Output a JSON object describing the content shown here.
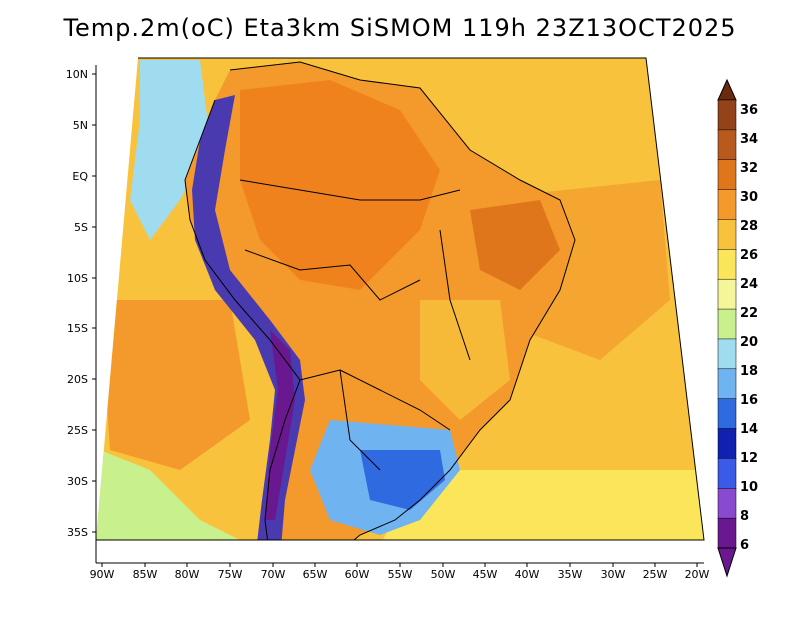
{
  "title": "Temp.2m(oC) Eta3km SiSMOM 119h 23Z13OCT2025",
  "lat_labels": [
    "10N",
    "5N",
    "EQ",
    "5S",
    "10S",
    "15S",
    "20S",
    "25S",
    "30S",
    "35S"
  ],
  "lon_labels": [
    "90W",
    "85W",
    "80W",
    "75W",
    "70W",
    "65W",
    "60W",
    "55W",
    "50W",
    "45W",
    "40W",
    "35W",
    "30W",
    "25W",
    "20W"
  ],
  "colorbar": {
    "labels": [
      "36",
      "34",
      "32",
      "30",
      "28",
      "26",
      "24",
      "22",
      "20",
      "18",
      "16",
      "14",
      "12",
      "10",
      "8",
      "6"
    ],
    "colors": [
      "#6b2a0e",
      "#93421a",
      "#b85a1e",
      "#e0761c",
      "#f49a2c",
      "#f8c23c",
      "#fbe55a",
      "#f5f59a",
      "#c8f08c",
      "#9fdcf0",
      "#6fb4f0",
      "#2f6ae0",
      "#1020b0",
      "#3a5ae8",
      "#8a4ad0",
      "#6a1890"
    ]
  },
  "palette": {
    "ocean": "#f8c23c",
    "ocean_warm": "#f49a2c",
    "land_hot": "#f0821e",
    "land_warm": "#f49a2c",
    "andes": "#4a3ab0",
    "andes_high": "#6a1890",
    "south_cool": "#6fb4f0",
    "south_cold": "#2f6ae0",
    "pacific_cool": "#9fdcf0"
  }
}
